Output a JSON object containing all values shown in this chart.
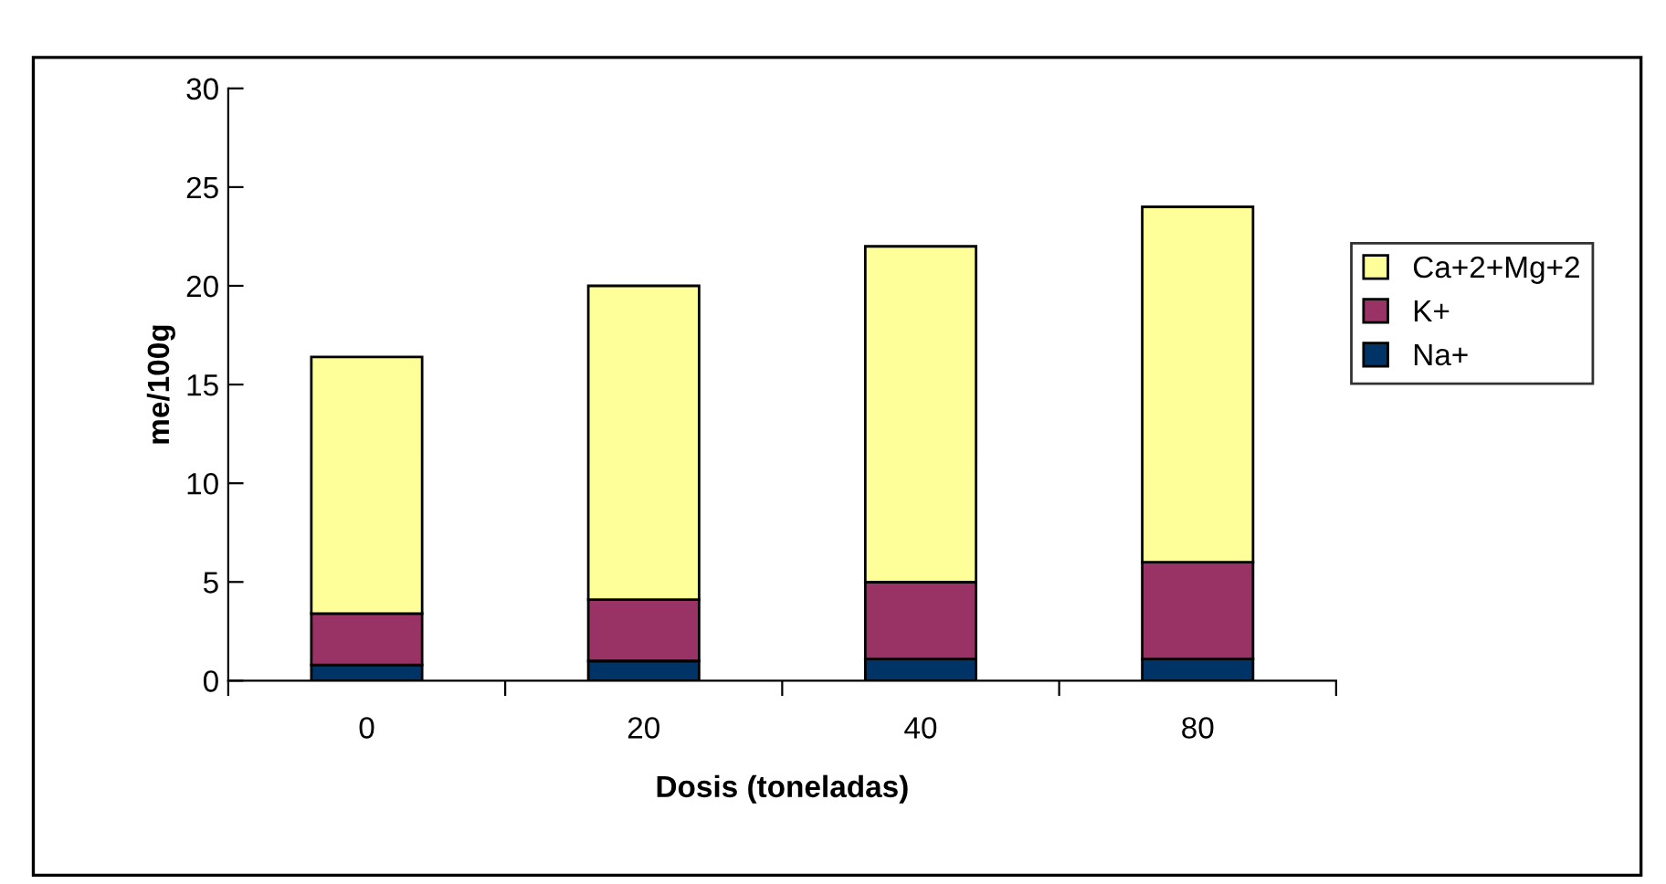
{
  "chart_data": {
    "type": "bar",
    "stacked": true,
    "xlabel": "Dosis (toneladas)",
    "ylabel": "me/100g",
    "categories": [
      "0",
      "20",
      "40",
      "80"
    ],
    "series": [
      {
        "name": "Na+",
        "color": "#003366",
        "values": [
          0.8,
          1.0,
          1.1,
          1.1
        ]
      },
      {
        "name": "K+",
        "color": "#993366",
        "values": [
          2.6,
          3.1,
          3.9,
          4.9
        ]
      },
      {
        "name": "Ca+2+Mg+2",
        "color": "#ffff99",
        "values": [
          13.0,
          15.9,
          17.0,
          18.0
        ]
      }
    ],
    "ylim": [
      0,
      30
    ],
    "yticks": [
      0,
      5,
      10,
      15,
      20,
      25,
      30
    ],
    "grid": false,
    "legend": "right"
  }
}
